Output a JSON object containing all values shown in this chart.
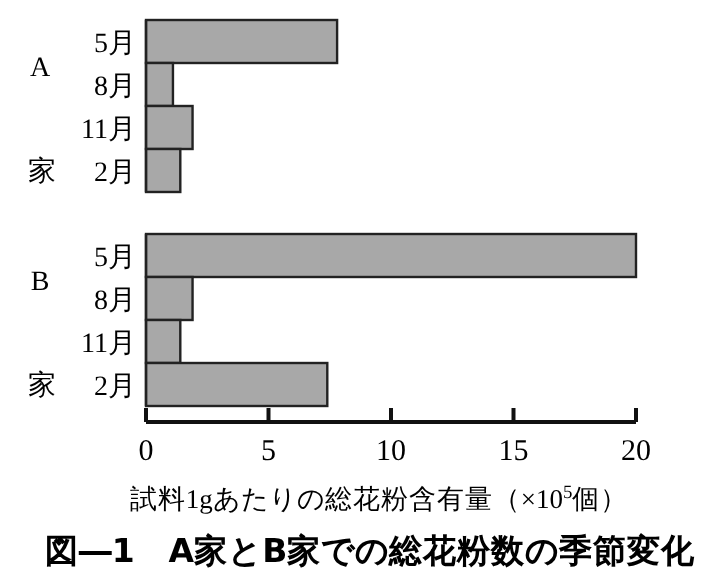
{
  "chart_data": [
    {
      "type": "bar",
      "orientation": "horizontal",
      "ylabel": "A家",
      "categories": [
        "5月",
        "8月",
        "11月",
        "2月"
      ],
      "color": "#a8a8a8",
      "values": [
        7.8,
        1.1,
        1.9,
        1.4
      ],
      "xlim": [
        0,
        20
      ],
      "tick_labels": "y"
    },
    {
      "type": "bar",
      "orientation": "horizontal",
      "ylabel": "B家",
      "categories": [
        "5月",
        "8月",
        "11月",
        "2月"
      ],
      "color": "#a8a8a8",
      "values": [
        20.0,
        1.9,
        1.4,
        7.4
      ],
      "xlim": [
        0,
        20
      ],
      "xticks": [
        0,
        5,
        10,
        15,
        20
      ],
      "xlabel": "試料1gあたりの総花粉含有量（×10$^{5}$個）",
      "title": "図―1　A家とB家での総花粉数の季節変化"
    }
  ]
}
